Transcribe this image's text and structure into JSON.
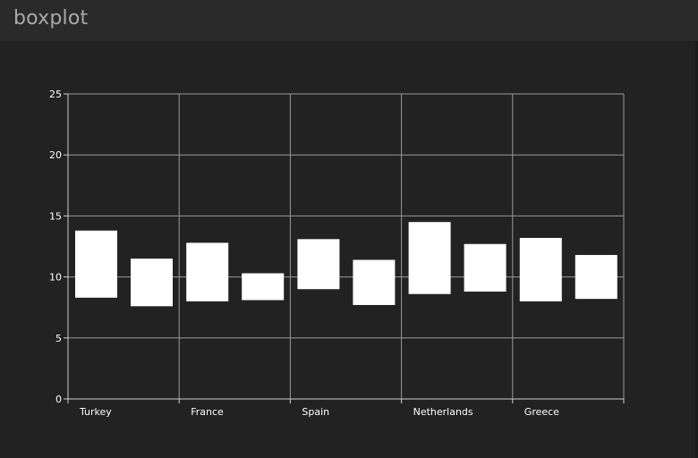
{
  "header": {
    "title": "boxplot"
  },
  "chart_data": {
    "type": "boxplot",
    "categories": [
      "Turkey",
      "France",
      "Spain",
      "Netherlands",
      "Greece"
    ],
    "series": [
      {
        "boxes": [
          [
            8.3,
            13.8
          ],
          [
            8.0,
            12.8
          ],
          [
            9.0,
            13.1
          ],
          [
            8.6,
            14.5
          ],
          [
            8.0,
            13.2
          ]
        ]
      },
      {
        "boxes": [
          [
            7.6,
            11.5
          ],
          [
            8.1,
            10.3
          ],
          [
            7.7,
            11.4
          ],
          [
            8.8,
            12.7
          ],
          [
            8.2,
            11.8
          ]
        ]
      }
    ],
    "ylim": [
      0,
      25
    ],
    "yticks": [
      0,
      5,
      10,
      15,
      20,
      25
    ],
    "grid": true,
    "colors": {
      "box": "#ffffff",
      "grid": "#9a9a9a",
      "axis": "#cfcfcf",
      "background": "#222222"
    }
  }
}
